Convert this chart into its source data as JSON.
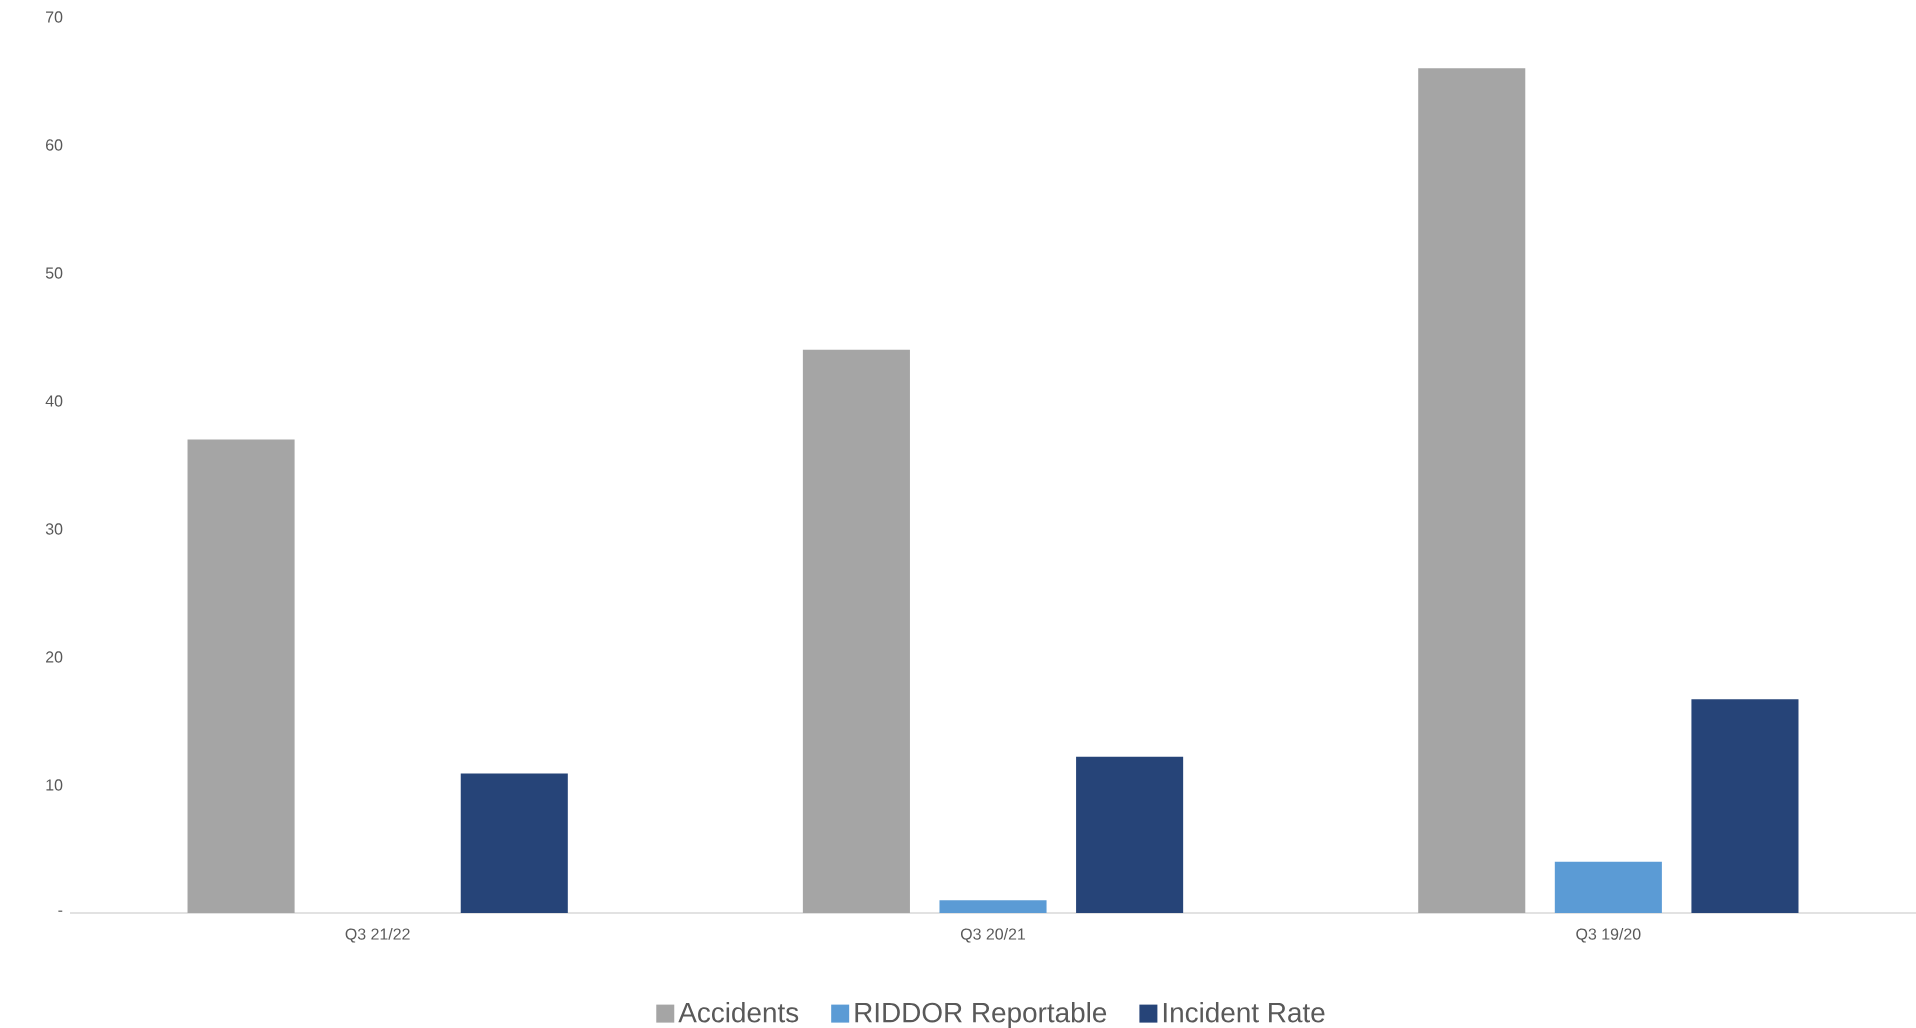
{
  "chart_data": {
    "type": "bar",
    "categories": [
      "Q3 21/22",
      "Q3 20/21",
      "Q3 19/20"
    ],
    "series": [
      {
        "name": "Accidents",
        "color": "#a5a5a5",
        "values": [
          37,
          44,
          66
        ]
      },
      {
        "name": "RIDDOR Reportable",
        "color": "#5b9bd5",
        "values": [
          0,
          1,
          4
        ]
      },
      {
        "name": "Incident Rate",
        "color": "#264478",
        "values": [
          10.9,
          12.2,
          16.7
        ]
      }
    ],
    "ylim": [
      0,
      70
    ],
    "yticks": [
      {
        "value": 0,
        "label": "-"
      },
      10,
      20,
      30,
      40,
      50,
      60,
      70
    ],
    "legend": "bottom"
  }
}
